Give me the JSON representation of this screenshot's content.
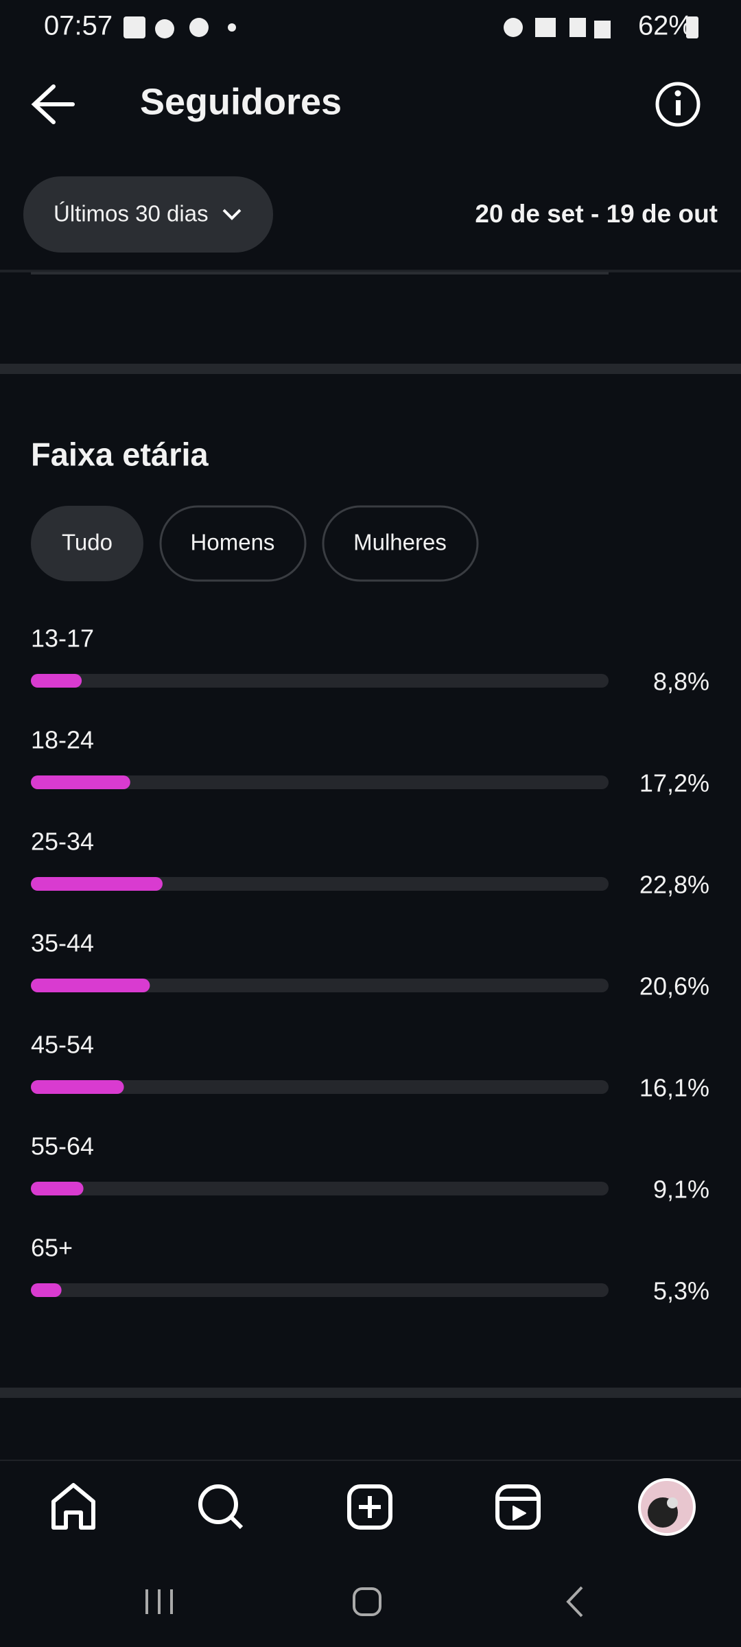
{
  "status_bar": {
    "time": "07:57",
    "battery": "62%"
  },
  "header": {
    "title": "Seguidores"
  },
  "filter": {
    "period": "Últimos 30 dias",
    "date_range": "20 de set - 19 de out"
  },
  "tabs": [
    "Tudo",
    "Homens",
    "Mulheres"
  ],
  "chart_data": {
    "type": "bar",
    "title": "Faixa etária",
    "categories": [
      "13-17",
      "18-24",
      "25-34",
      "35-44",
      "45-54",
      "55-64",
      "65+"
    ],
    "values": [
      8.8,
      17.2,
      22.8,
      20.6,
      16.1,
      9.1,
      5.3
    ],
    "value_labels": [
      "8,8%",
      "17,2%",
      "22,8%",
      "20,6%",
      "16,1%",
      "9,1%",
      "5,3%"
    ],
    "xlim": [
      0,
      100
    ],
    "color": "#d93bd0"
  }
}
